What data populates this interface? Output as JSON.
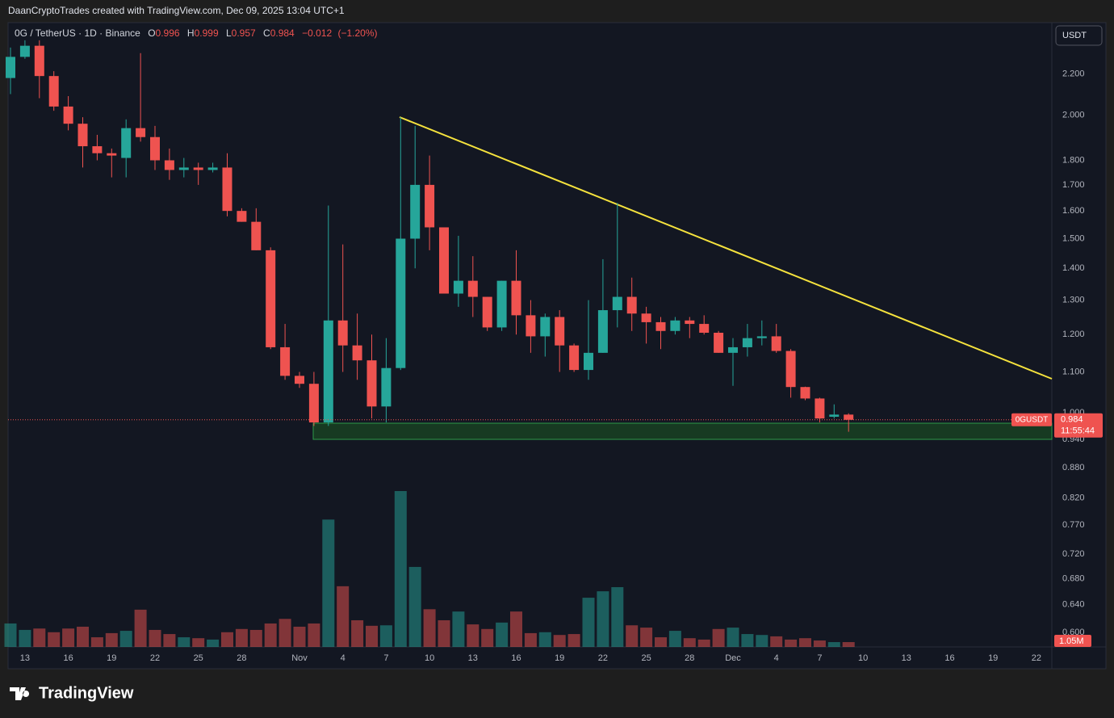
{
  "attribution": "DaanCryptoTrades created with TradingView.com, Dec 09, 2025 13:04 UTC+1",
  "brand": "TradingView",
  "chart_data": {
    "type": "candlestick",
    "title": "0G / TetherUS · 1D · Binance",
    "legend_keys": [
      "O",
      "H",
      "L",
      "C"
    ],
    "legend_values": [
      0.996,
      0.999,
      0.957,
      0.984
    ],
    "change": {
      "value": -0.012,
      "label": "−0.012"
    },
    "change_pct": {
      "value": -1.2,
      "label": "(−1.20%)"
    },
    "currency": "USDT",
    "up_color": "#26a69a",
    "down_color": "#ef5350",
    "log_scale": true,
    "grid": false,
    "categories": [
      null,
      "13",
      null,
      null,
      "16",
      null,
      null,
      "19",
      null,
      null,
      "22",
      null,
      null,
      "25",
      null,
      null,
      "28",
      null,
      null,
      null,
      "Nov",
      null,
      null,
      "4",
      null,
      null,
      "7",
      null,
      null,
      "10",
      null,
      null,
      "13",
      null,
      null,
      "16",
      null,
      null,
      "19",
      null,
      null,
      "22",
      null,
      null,
      "25",
      null,
      null,
      "28",
      null,
      null,
      "Dec",
      null,
      null,
      "4",
      null,
      null,
      "7",
      null,
      null,
      "10",
      null,
      null,
      "13",
      null,
      null,
      "16",
      null,
      null,
      "19",
      null,
      null,
      "22"
    ],
    "open": [
      2.18,
      2.29,
      2.35,
      2.19,
      2.04,
      1.96,
      1.86,
      1.83,
      1.81,
      1.94,
      1.9,
      1.8,
      1.76,
      1.77,
      1.76,
      1.77,
      1.6,
      1.56,
      1.46,
      1.165,
      1.09,
      1.07,
      0.978,
      1.24,
      1.17,
      1.13,
      1.015,
      1.11,
      1.5,
      1.7,
      1.54,
      1.32,
      1.36,
      1.31,
      1.22,
      1.36,
      1.255,
      1.195,
      1.25,
      1.17,
      1.105,
      1.15,
      1.27,
      1.31,
      1.26,
      1.235,
      1.21,
      1.24,
      1.23,
      1.205,
      1.15,
      1.165,
      1.19,
      1.195,
      1.155,
      1.062,
      1.034,
      0.991,
      0.996,
      null,
      null,
      null,
      null,
      null,
      null,
      null,
      null,
      null,
      null,
      null,
      null,
      null
    ],
    "high": [
      2.34,
      2.38,
      2.38,
      2.215,
      2.09,
      1.99,
      1.91,
      1.85,
      1.98,
      2.31,
      1.95,
      1.85,
      1.81,
      1.79,
      1.79,
      1.83,
      1.61,
      1.61,
      1.47,
      1.23,
      1.1,
      1.1,
      1.62,
      1.48,
      1.26,
      1.2,
      1.19,
      1.99,
      1.95,
      1.82,
      1.54,
      1.51,
      1.44,
      1.31,
      1.36,
      1.46,
      1.3,
      1.26,
      1.27,
      1.175,
      1.3,
      1.43,
      1.63,
      1.37,
      1.28,
      1.25,
      1.25,
      1.25,
      1.255,
      1.21,
      1.19,
      1.23,
      1.24,
      1.23,
      1.16,
      1.063,
      1.036,
      1.02,
      0.999,
      null,
      null,
      null,
      null,
      null,
      null,
      null,
      null,
      null,
      null,
      null,
      null,
      null
    ],
    "low": [
      2.1,
      2.28,
      2.08,
      2.02,
      1.93,
      1.77,
      1.8,
      1.73,
      1.73,
      1.88,
      1.76,
      1.72,
      1.73,
      1.7,
      1.75,
      1.58,
      1.56,
      1.46,
      1.16,
      1.08,
      1.06,
      0.97,
      0.97,
      1.1,
      1.08,
      0.987,
      0.978,
      1.105,
      1.4,
      1.46,
      1.32,
      1.28,
      1.25,
      1.21,
      1.21,
      1.2,
      1.15,
      1.14,
      1.1,
      1.1,
      1.08,
      1.15,
      1.22,
      1.21,
      1.175,
      1.16,
      1.2,
      1.19,
      1.2,
      1.15,
      1.065,
      1.14,
      1.17,
      1.15,
      1.036,
      1.03,
      0.978,
      0.987,
      0.957,
      null,
      null,
      null,
      null,
      null,
      null,
      null,
      null,
      null,
      null,
      null,
      null,
      null
    ],
    "close": [
      2.29,
      2.35,
      2.19,
      2.04,
      1.96,
      1.86,
      1.83,
      1.82,
      1.94,
      1.9,
      1.8,
      1.76,
      1.77,
      1.76,
      1.77,
      1.6,
      1.56,
      1.46,
      1.165,
      1.09,
      1.07,
      0.978,
      1.24,
      1.17,
      1.13,
      1.015,
      1.11,
      1.5,
      1.7,
      1.54,
      1.32,
      1.36,
      1.31,
      1.22,
      1.36,
      1.255,
      1.195,
      1.25,
      1.17,
      1.105,
      1.15,
      1.27,
      1.31,
      1.26,
      1.235,
      1.21,
      1.24,
      1.23,
      1.205,
      1.15,
      1.165,
      1.19,
      1.195,
      1.155,
      1.062,
      1.034,
      0.987,
      0.996,
      0.984,
      null,
      null,
      null,
      null,
      null,
      null,
      null,
      null,
      null,
      null,
      null,
      null,
      null
    ],
    "volume": [
      5.1,
      3.7,
      4.0,
      3.2,
      4.0,
      4.4,
      2.1,
      3.0,
      3.5,
      8.1,
      3.7,
      2.8,
      2.1,
      1.9,
      1.6,
      3.2,
      3.9,
      3.7,
      5.1,
      6.1,
      4.4,
      5.1,
      27.7,
      13.2,
      5.8,
      4.6,
      4.7,
      33.9,
      17.4,
      8.2,
      5.8,
      7.7,
      4.9,
      3.9,
      5.3,
      7.7,
      3.0,
      3.2,
      2.6,
      2.8,
      10.7,
      12.1,
      13.0,
      4.7,
      4.2,
      2.1,
      3.5,
      1.9,
      1.6,
      3.9,
      4.2,
      2.8,
      2.6,
      2.3,
      1.6,
      1.9,
      1.4,
      1.05,
      1.05,
      null,
      null,
      null,
      null,
      null,
      null,
      null,
      null,
      null,
      null,
      null,
      null,
      null
    ],
    "volume_last": {
      "value": 1.05,
      "label": "1.05M"
    },
    "price_label": {
      "symbol": "0GUSDT",
      "value": 0.984,
      "countdown": "11:55:44"
    },
    "ylim": [
      0.58,
      2.48
    ],
    "yticks": [
      {
        "value": 2.2,
        "label": "2.200"
      },
      {
        "value": 2.0,
        "label": "2.000"
      },
      {
        "value": 1.8,
        "label": "1.800"
      },
      {
        "value": 1.7,
        "label": "1.700"
      },
      {
        "value": 1.6,
        "label": "1.600"
      },
      {
        "value": 1.5,
        "label": "1.500"
      },
      {
        "value": 1.4,
        "label": "1.400"
      },
      {
        "value": 1.3,
        "label": "1.300"
      },
      {
        "value": 1.2,
        "label": "1.200"
      },
      {
        "value": 1.1,
        "label": "1.100"
      },
      {
        "value": 1.0,
        "label": "1.000"
      },
      {
        "value": 0.94,
        "label": "0.940"
      },
      {
        "value": 0.88,
        "label": "0.880"
      },
      {
        "value": 0.82,
        "label": "0.820"
      },
      {
        "value": 0.77,
        "label": "0.770"
      },
      {
        "value": 0.72,
        "label": "0.720"
      },
      {
        "value": 0.68,
        "label": "0.680"
      },
      {
        "value": 0.64,
        "label": "0.640"
      },
      {
        "value": 0.6,
        "label": "0.600"
      }
    ]
  }
}
